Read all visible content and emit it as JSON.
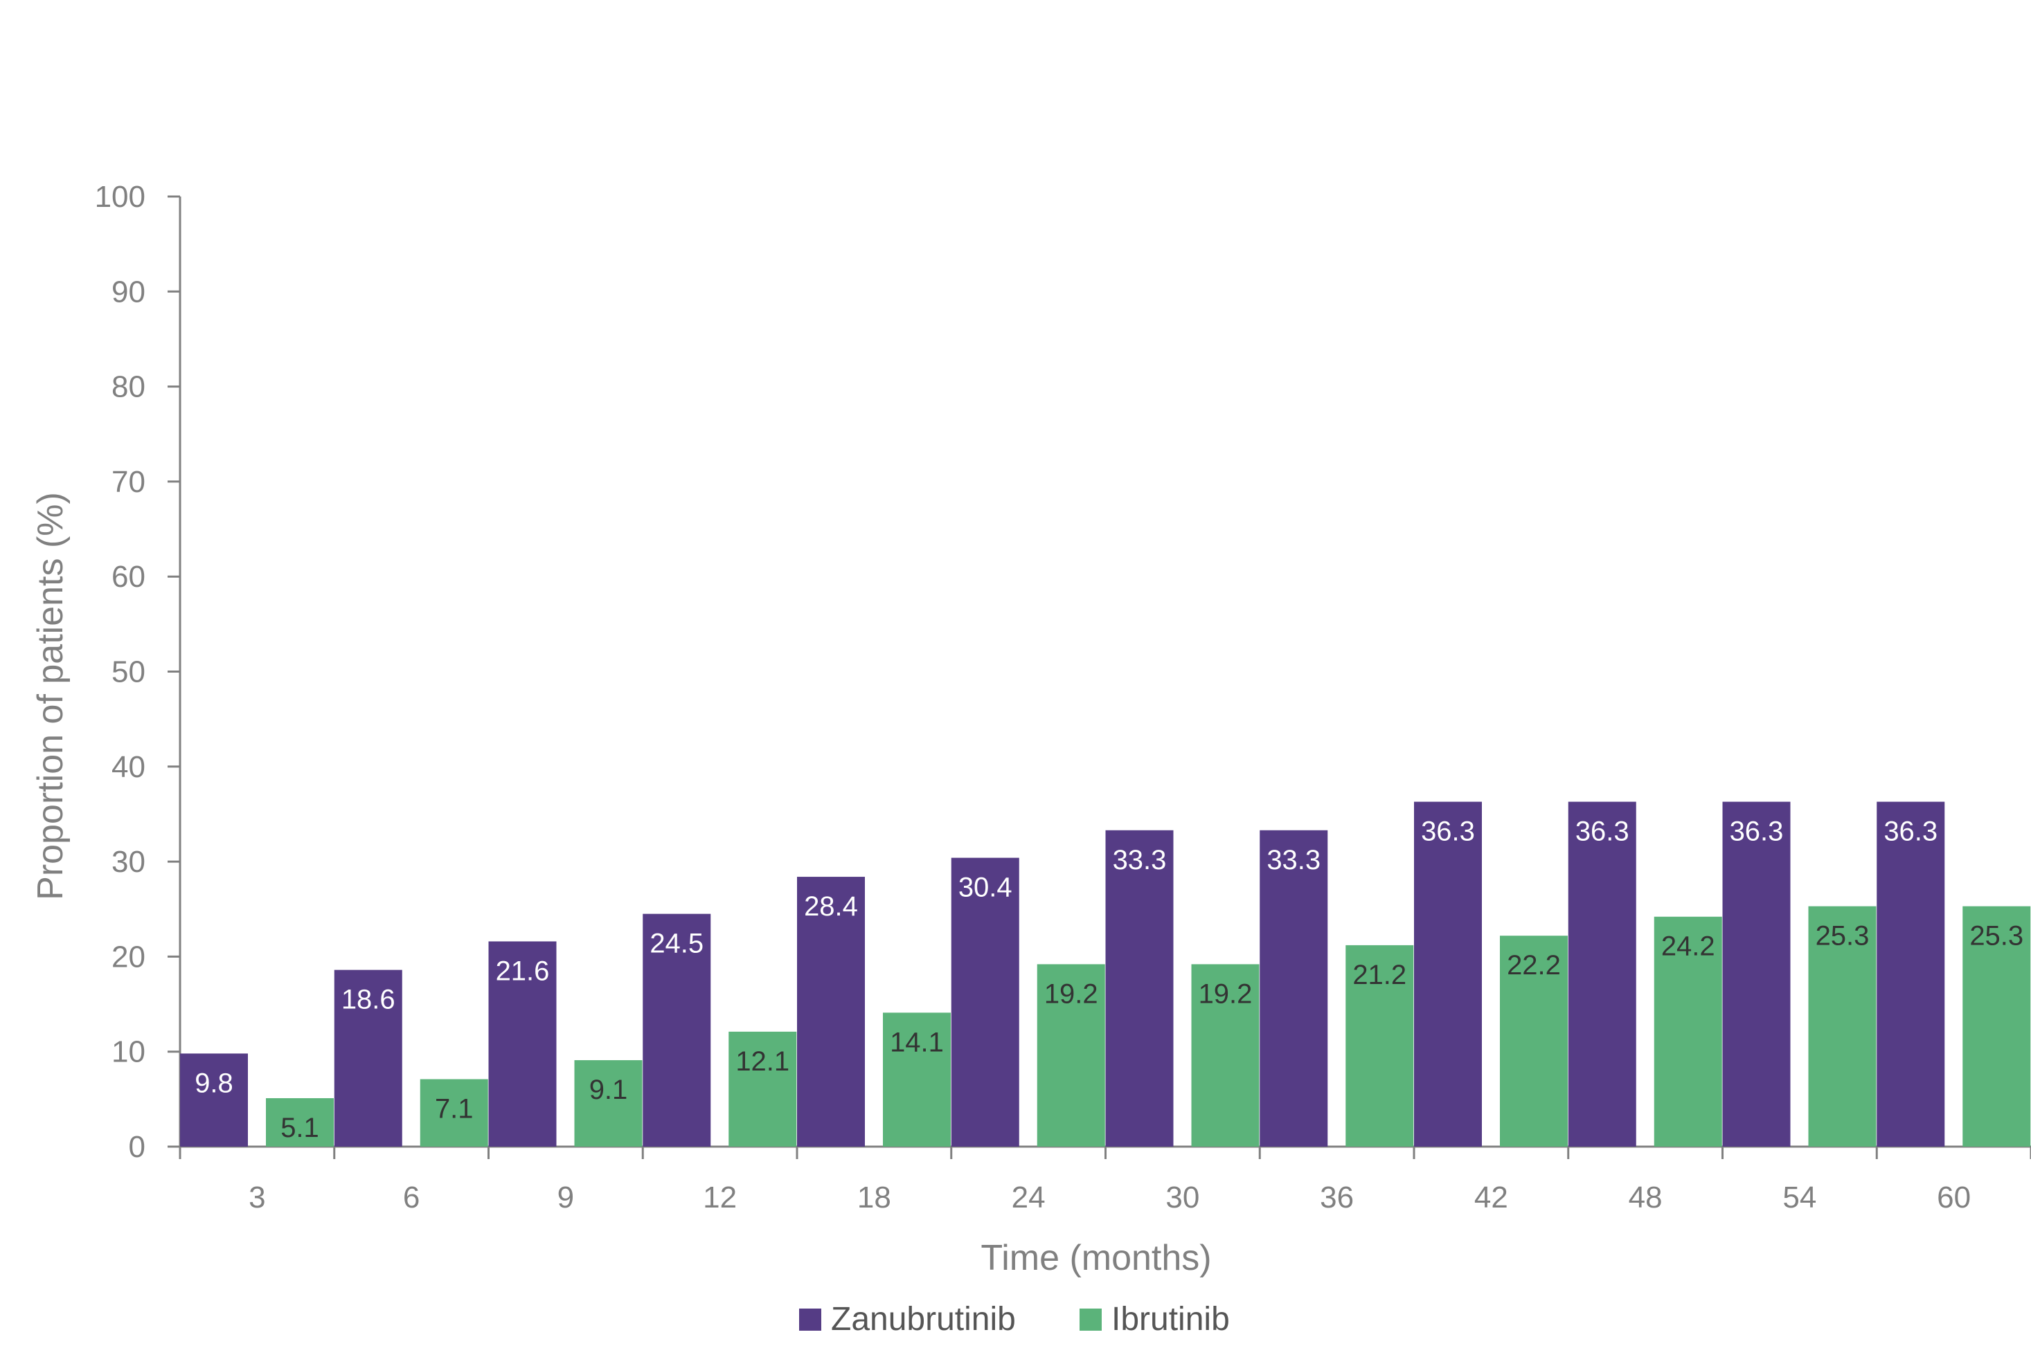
{
  "chart_data": {
    "type": "bar",
    "title": "",
    "xlabel": "Time (months)",
    "ylabel": "Proportion of patients (%)",
    "ylim": [
      0,
      100
    ],
    "yticks": [
      0,
      10,
      20,
      30,
      40,
      50,
      60,
      70,
      80,
      90,
      100
    ],
    "categories": [
      "3",
      "6",
      "9",
      "12",
      "18",
      "24",
      "30",
      "36",
      "42",
      "48",
      "54",
      "60"
    ],
    "series": [
      {
        "name": "Zanubrutinib",
        "color": "#553C85",
        "label_color": "#FFFFFF",
        "values": [
          9.8,
          18.6,
          21.6,
          24.5,
          28.4,
          30.4,
          33.3,
          33.3,
          36.3,
          36.3,
          36.3,
          36.3
        ],
        "labels": [
          "9.8",
          "18.6",
          "21.6",
          "24.5",
          "28.4",
          "30.4",
          "33.3",
          "33.3",
          "36.3",
          "36.3",
          "36.3",
          "36.3"
        ]
      },
      {
        "name": "Ibrutinib",
        "color": "#5BB37A",
        "label_color": "#333333",
        "values": [
          5.1,
          7.1,
          9.1,
          12.1,
          14.1,
          19.2,
          19.2,
          21.2,
          22.2,
          24.2,
          25.3,
          25.3
        ],
        "labels": [
          "5.1",
          "7.1",
          "9.1",
          "12.1",
          "14.1",
          "19.2",
          "19.2",
          "21.2",
          "22.2",
          "24.2",
          "25.3",
          "25.3"
        ]
      }
    ],
    "grid": false,
    "legend_position": "bottom-center",
    "axis_color": "#808080"
  }
}
